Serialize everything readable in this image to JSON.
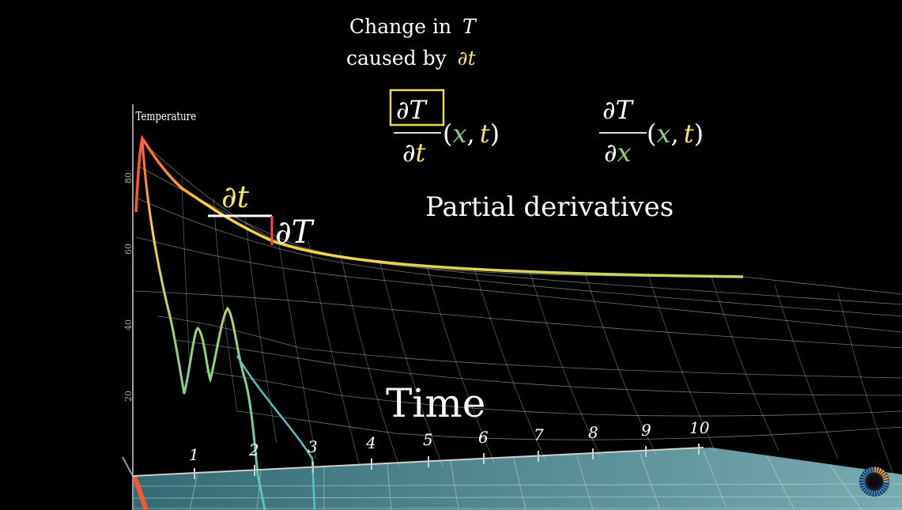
{
  "caption": {
    "line1": "Change in",
    "line1_var": "T",
    "line2": "caused by",
    "line2_var": "∂t"
  },
  "formula_dt": {
    "numerator": "∂T",
    "denominator_d": "∂",
    "denominator_var": "t",
    "args_open": "(",
    "arg_x": "x",
    "comma": ",",
    "arg_t": "t",
    "args_close": ")"
  },
  "formula_dx": {
    "numerator": "∂T",
    "denominator_d": "∂",
    "denominator_var": "x",
    "args_open": "(",
    "arg_x": "x",
    "comma": ",",
    "arg_t": "t",
    "args_close": ")"
  },
  "subtitle": "Partial derivatives",
  "labels": {
    "dt": "∂t",
    "dT": "∂T",
    "time_axis": "Time",
    "temperature_axis": "Temperature"
  },
  "time_ticks": [
    "1",
    "2",
    "3",
    "4",
    "5",
    "6",
    "7",
    "8",
    "9",
    "10"
  ],
  "temperature_ticks": [
    "80",
    "60",
    "40",
    "20"
  ],
  "colors": {
    "highlight_box": "#e8dc4a",
    "dt_color": "#f5e663",
    "dx_color": "#8fd17a",
    "dT_segment": "#ff4a4a",
    "floor": "#5fa8b4"
  },
  "icon": "loading-ring-icon"
}
